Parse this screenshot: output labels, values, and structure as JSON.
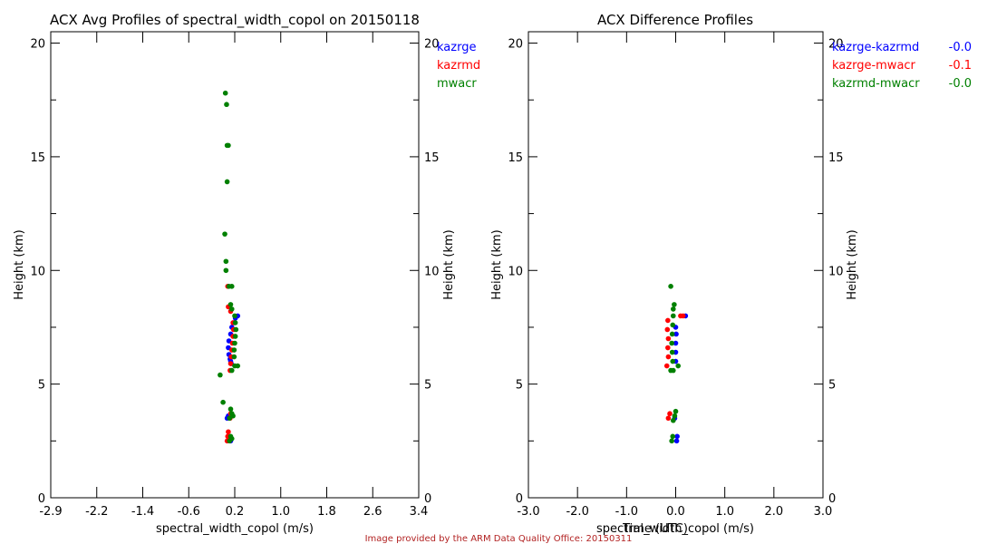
{
  "credit": "Image provided by the ARM Data Quality Office: 20150311",
  "colors": {
    "kazrge": "#0000ff",
    "kazrmd": "#ff0000",
    "mwacr": "#008000"
  },
  "chart_data": [
    {
      "type": "scatter",
      "title": "ACX Avg Profiles of spectral_width_copol on 20150118",
      "xlabel": "spectral_width_copol (m/s)",
      "ylabel": "Height (km)",
      "ylabel_right": "Height (km)",
      "xlim": [
        -2.9,
        3.4
      ],
      "ylim": [
        0,
        20.5
      ],
      "xticks": [
        "-2.9",
        "-2.2",
        "-1.4",
        "-0.6",
        "0.2",
        "1.0",
        "1.8",
        "2.6",
        "3.4"
      ],
      "yticks": [
        "0",
        "5",
        "10",
        "15",
        "20"
      ],
      "legend_position": "top-right outside",
      "series": [
        {
          "name": "kazrge",
          "color": "#0000ff",
          "points": [
            [
              0.16,
              2.6
            ],
            [
              0.18,
              2.5
            ],
            [
              0.12,
              3.5
            ],
            [
              0.14,
              3.6
            ],
            [
              0.18,
              6.0
            ],
            [
              0.15,
              6.3
            ],
            [
              0.14,
              6.6
            ],
            [
              0.15,
              6.9
            ],
            [
              0.18,
              7.2
            ],
            [
              0.2,
              7.5
            ],
            [
              0.24,
              7.7
            ],
            [
              0.3,
              8.0
            ],
            [
              0.26,
              7.9
            ],
            [
              0.17,
              6.1
            ],
            [
              0.19,
              5.9
            ]
          ]
        },
        {
          "name": "kazrmd",
          "color": "#ff0000",
          "points": [
            [
              0.12,
              2.5
            ],
            [
              0.13,
              2.7
            ],
            [
              0.14,
              2.9
            ],
            [
              0.17,
              3.5
            ],
            [
              0.18,
              3.7
            ],
            [
              0.17,
              5.6
            ],
            [
              0.18,
              5.9
            ],
            [
              0.19,
              6.2
            ],
            [
              0.2,
              6.5
            ],
            [
              0.21,
              6.8
            ],
            [
              0.22,
              7.1
            ],
            [
              0.23,
              7.4
            ],
            [
              0.22,
              7.7
            ],
            [
              0.18,
              8.2
            ],
            [
              0.14,
              8.4
            ],
            [
              0.13,
              9.3
            ]
          ]
        },
        {
          "name": "mwacr",
          "color": "#008000",
          "points": [
            [
              0.16,
              2.5
            ],
            [
              0.18,
              2.7
            ],
            [
              0.2,
              2.6
            ],
            [
              0.16,
              3.5
            ],
            [
              0.2,
              3.7
            ],
            [
              0.22,
              3.6
            ],
            [
              0.18,
              3.9
            ],
            [
              0.05,
              4.2
            ],
            [
              0.0,
              5.4
            ],
            [
              0.2,
              5.6
            ],
            [
              0.25,
              5.8
            ],
            [
              0.3,
              5.8
            ],
            [
              0.24,
              6.2
            ],
            [
              0.24,
              6.5
            ],
            [
              0.25,
              6.8
            ],
            [
              0.26,
              7.1
            ],
            [
              0.27,
              7.4
            ],
            [
              0.26,
              7.7
            ],
            [
              0.25,
              8.0
            ],
            [
              0.2,
              8.3
            ],
            [
              0.18,
              8.5
            ],
            [
              0.15,
              9.3
            ],
            [
              0.2,
              9.3
            ],
            [
              0.1,
              10.0
            ],
            [
              0.1,
              10.4
            ],
            [
              0.08,
              11.6
            ],
            [
              0.12,
              13.9
            ],
            [
              0.12,
              15.5
            ],
            [
              0.14,
              15.5
            ],
            [
              0.11,
              17.3
            ],
            [
              0.09,
              17.8
            ]
          ]
        }
      ]
    },
    {
      "type": "scatter",
      "title": "ACX Difference Profiles",
      "xlabel": "spectral_width_copol (m/s)",
      "xlabel_overlap": "Time (UTC)",
      "ylabel": "Height (km)",
      "ylabel_right": "Height (km)",
      "xlim": [
        -3.0,
        3.0
      ],
      "ylim": [
        0,
        20.5
      ],
      "xticks": [
        "-3.0",
        "-2.0",
        "-1.0",
        "0.0",
        "1.0",
        "2.0",
        "3.0"
      ],
      "yticks": [
        "0",
        "5",
        "10",
        "15",
        "20"
      ],
      "legend_position": "top-right outside",
      "series": [
        {
          "name": "kazrge-kazrmd",
          "mean": "-0.0",
          "color": "#0000ff",
          "points": [
            [
              0.02,
              2.5
            ],
            [
              0.03,
              2.7
            ],
            [
              -0.02,
              3.5
            ],
            [
              0.0,
              6.0
            ],
            [
              0.0,
              6.4
            ],
            [
              0.0,
              6.8
            ],
            [
              0.01,
              7.2
            ],
            [
              0.0,
              7.5
            ],
            [
              0.2,
              8.0
            ]
          ]
        },
        {
          "name": "kazrge-mwacr",
          "mean": "-0.1",
          "color": "#ff0000",
          "points": [
            [
              -0.15,
              3.5
            ],
            [
              -0.12,
              3.7
            ],
            [
              -0.18,
              5.8
            ],
            [
              -0.15,
              6.2
            ],
            [
              -0.16,
              6.6
            ],
            [
              -0.15,
              7.0
            ],
            [
              -0.17,
              7.4
            ],
            [
              -0.16,
              7.8
            ],
            [
              0.1,
              8.0
            ],
            [
              0.15,
              8.0
            ]
          ]
        },
        {
          "name": "kazrmd-mwacr",
          "mean": "-0.0",
          "color": "#008000",
          "points": [
            [
              -0.08,
              2.5
            ],
            [
              -0.06,
              2.7
            ],
            [
              -0.05,
              3.4
            ],
            [
              -0.02,
              3.6
            ],
            [
              0.0,
              3.8
            ],
            [
              -0.1,
              5.6
            ],
            [
              -0.05,
              5.6
            ],
            [
              0.05,
              5.8
            ],
            [
              -0.06,
              6.0
            ],
            [
              -0.07,
              6.4
            ],
            [
              -0.08,
              6.8
            ],
            [
              -0.07,
              7.2
            ],
            [
              -0.06,
              7.6
            ],
            [
              -0.05,
              8.0
            ],
            [
              -0.05,
              8.3
            ],
            [
              -0.03,
              8.5
            ],
            [
              -0.1,
              9.3
            ]
          ]
        }
      ]
    }
  ]
}
